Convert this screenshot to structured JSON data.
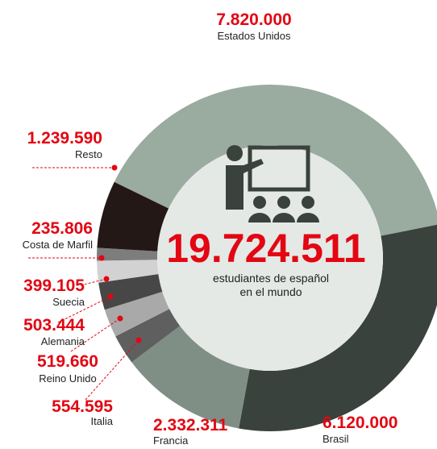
{
  "chart_data": {
    "type": "donut",
    "categories": [
      "Estados Unidos",
      "Brasil",
      "Francia",
      "Italia",
      "Reino Unido",
      "Alemania",
      "Suecia",
      "Costa de Marfil",
      "Resto"
    ],
    "values": [
      7820000,
      6120000,
      2332311,
      554595,
      519660,
      503444,
      399105,
      235806,
      1239590
    ],
    "value_labels": [
      "7.820.000",
      "6.120.000",
      "2.332.311",
      "554.595",
      "519.660",
      "503.444",
      "399.105",
      "235.806",
      "1.239.590"
    ],
    "colors": [
      "#9aaba0",
      "#3a423d",
      "#7f8f85",
      "#5f5f5f",
      "#a9a9a9",
      "#474747",
      "#d2d2d2",
      "#7d7d7d",
      "#231815"
    ],
    "center_label": "19.724.511",
    "center_caption": [
      "estudiantes de español",
      "en el mundo"
    ]
  }
}
